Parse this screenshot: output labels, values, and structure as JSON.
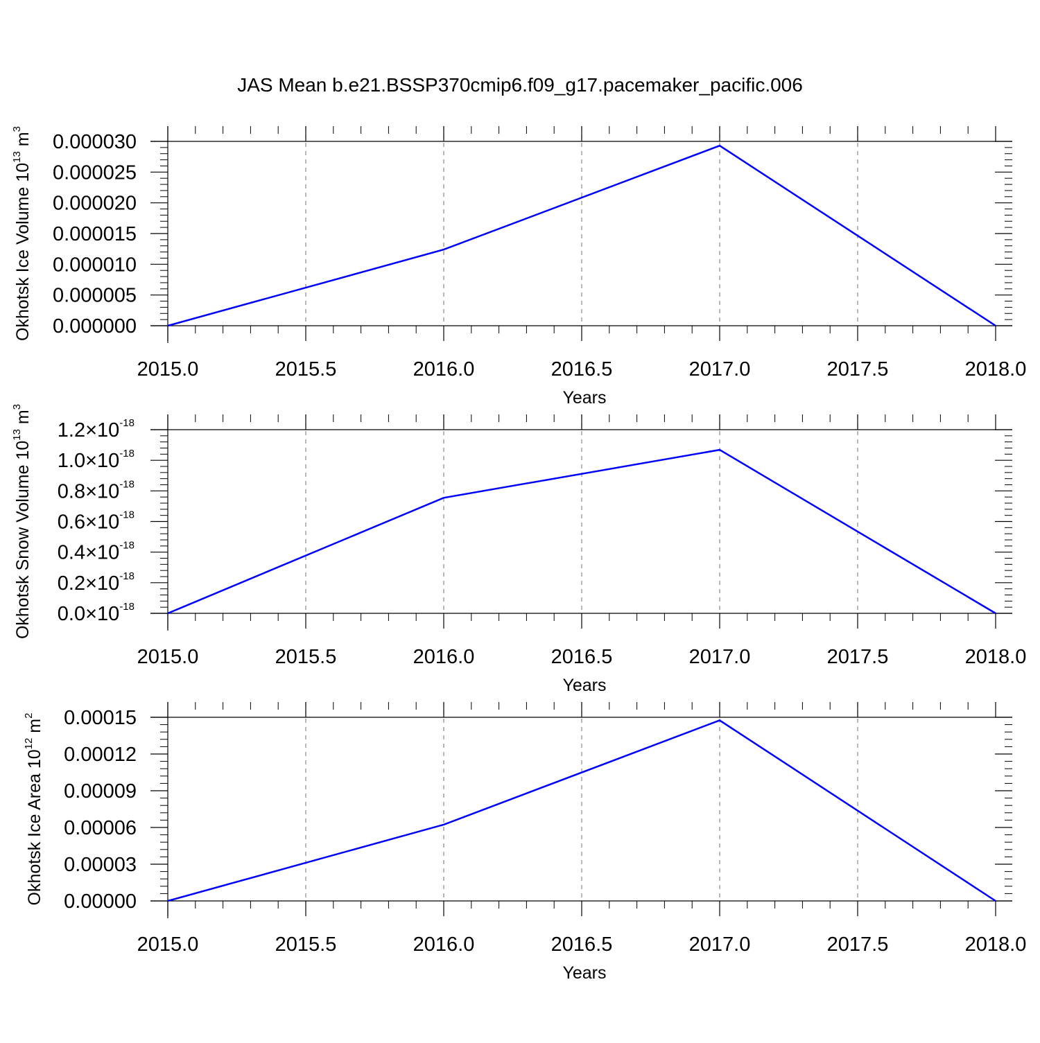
{
  "title": "JAS Mean b.e21.BSSP370cmip6.f09_g17.pacemaker_pacific.006",
  "chart_data": [
    {
      "type": "line",
      "title": "JAS Mean b.e21.BSSP370cmip6.f09_g17.pacemaker_pacific.006",
      "xlabel": "Years",
      "ylabel": {
        "text": "Okhotsk Ice Volume 10",
        "exp": "13",
        "unit_base": " m",
        "unit_exp": "3"
      },
      "xlim": [
        2015.0,
        2018.0
      ],
      "ylim": [
        0,
        3e-05
      ],
      "xticks": [
        "2015.0",
        "2015.5",
        "2016.0",
        "2016.5",
        "2017.0",
        "2017.5",
        "2018.0"
      ],
      "yticks": [
        {
          "label": "0.000000"
        },
        {
          "label": "0.000005"
        },
        {
          "label": "0.000010"
        },
        {
          "label": "0.000015"
        },
        {
          "label": "0.000020"
        },
        {
          "label": "0.000025"
        },
        {
          "label": "0.000030"
        }
      ],
      "grid": "vertical-dashed",
      "series": [
        {
          "color": "#0000ff",
          "x": [
            2015,
            2016,
            2017,
            2018
          ],
          "y": [
            0.0,
            1.24e-05,
            2.93e-05,
            0.0
          ]
        }
      ]
    },
    {
      "type": "line",
      "xlabel": "Years",
      "ylabel": {
        "text": "Okhotsk Snow Volume 10",
        "exp": "13",
        "unit_base": " m",
        "unit_exp": "3"
      },
      "xlim": [
        2015.0,
        2018.0
      ],
      "ylim": [
        0,
        1.2e-18
      ],
      "xticks": [
        "2015.0",
        "2015.5",
        "2016.0",
        "2016.5",
        "2017.0",
        "2017.5",
        "2018.0"
      ],
      "yticks": [
        {
          "label": "0.0",
          "mult": "×10",
          "exp": "-18"
        },
        {
          "label": "0.2",
          "mult": "×10",
          "exp": "-18"
        },
        {
          "label": "0.4",
          "mult": "×10",
          "exp": "-18"
        },
        {
          "label": "0.6",
          "mult": "×10",
          "exp": "-18"
        },
        {
          "label": "0.8",
          "mult": "×10",
          "exp": "-18"
        },
        {
          "label": "1.0",
          "mult": "×10",
          "exp": "-18"
        },
        {
          "label": "1.2",
          "mult": "×10",
          "exp": "-18"
        }
      ],
      "grid": "vertical-dashed",
      "series": [
        {
          "color": "#0000ff",
          "x": [
            2015,
            2016,
            2017,
            2018
          ],
          "y": [
            0.0,
            7.55e-19,
            1.068e-18,
            0.0
          ]
        }
      ]
    },
    {
      "type": "line",
      "xlabel": "Years",
      "ylabel": {
        "text": "Okhotsk Ice Area 10",
        "exp": "12",
        "unit_base": " m",
        "unit_exp": "2"
      },
      "xlim": [
        2015.0,
        2018.0
      ],
      "ylim": [
        0,
        0.00015
      ],
      "xticks": [
        "2015.0",
        "2015.5",
        "2016.0",
        "2016.5",
        "2017.0",
        "2017.5",
        "2018.0"
      ],
      "yticks": [
        {
          "label": "0.00000"
        },
        {
          "label": "0.00003"
        },
        {
          "label": "0.00006"
        },
        {
          "label": "0.00009"
        },
        {
          "label": "0.00012"
        },
        {
          "label": "0.00015"
        }
      ],
      "grid": "vertical-dashed",
      "series": [
        {
          "color": "#0000ff",
          "x": [
            2015,
            2016,
            2017,
            2018
          ],
          "y": [
            0.0,
            6.23e-05,
            0.0001475,
            0.0
          ]
        }
      ]
    }
  ]
}
